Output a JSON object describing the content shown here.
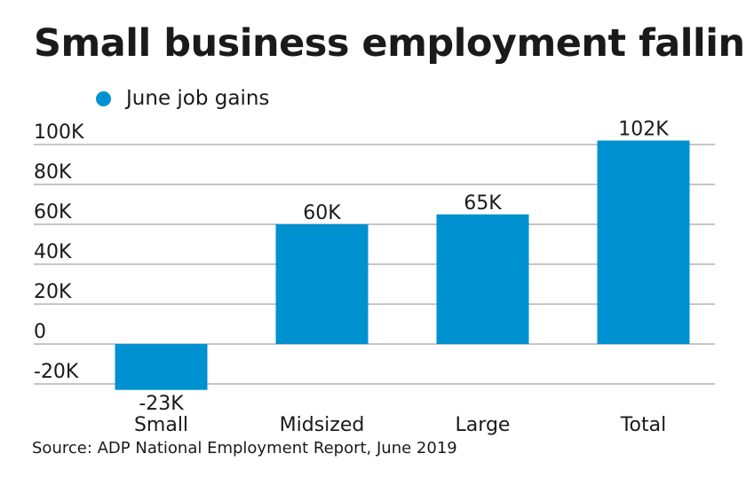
{
  "chart_data": {
    "type": "bar",
    "title": "Small business employment falling",
    "legend": {
      "entries": [
        "June job gains"
      ],
      "placement": "top-left"
    },
    "categories": [
      "Small",
      "Midsized",
      "Large",
      "Total"
    ],
    "series": [
      {
        "name": "June job gains",
        "values": [
          -23,
          60,
          65,
          102
        ],
        "labels": [
          "-23K",
          "60K",
          "65K",
          "102K"
        ]
      }
    ],
    "y_ticks": [
      {
        "value": 100,
        "label": "100K"
      },
      {
        "value": 80,
        "label": "80K"
      },
      {
        "value": 60,
        "label": "60K"
      },
      {
        "value": 40,
        "label": "40K"
      },
      {
        "value": 20,
        "label": "20K"
      },
      {
        "value": 0,
        "label": "0"
      },
      {
        "value": -20,
        "label": "-20K"
      }
    ],
    "ylim": [
      -20,
      100
    ],
    "grid": true,
    "bar_color": "#0092d0",
    "source": "Source: ADP National Employment Report, June 2019"
  }
}
